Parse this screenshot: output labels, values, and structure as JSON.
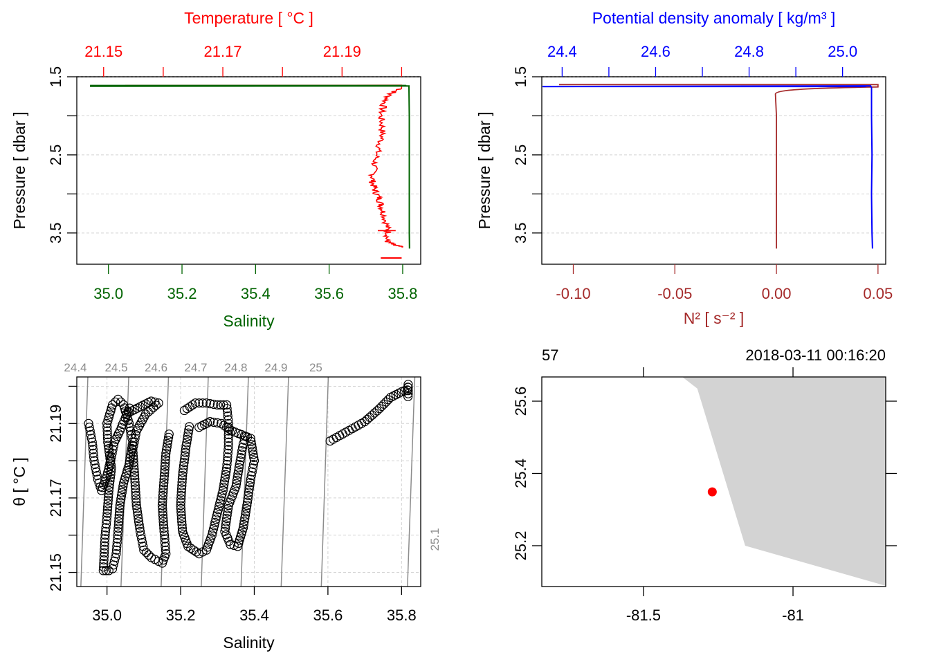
{
  "colors": {
    "temperature": "#ff0000",
    "salinity": "#006400",
    "density": "#0000ff",
    "n2": "#a52a2a",
    "grid": "#d3d3d3",
    "isopycnal": "#8c8c8c",
    "land": "#d3d3d3",
    "station": "#ff0000",
    "axis": "#000000"
  },
  "chart_data": [
    {
      "id": "profile_ts",
      "type": "line",
      "top_axis_title": "Temperature [ °C ]",
      "bottom_axis_title": "Salinity",
      "ylabel": "Pressure [ dbar ]",
      "top_ticks": [
        "21.15",
        "21.17",
        "21.19"
      ],
      "top_minor_ticks": [
        21.15,
        21.16,
        21.17,
        21.18,
        21.19,
        21.2
      ],
      "temp_lim": [
        21.1455,
        21.2032
      ],
      "bottom_ticks": [
        "35.0",
        "35.2",
        "35.4",
        "35.6",
        "35.8"
      ],
      "sal_lim": [
        34.914,
        35.849
      ],
      "y_ticks": [
        "1.5",
        "2.5",
        "3.5"
      ],
      "y_grid": [
        1.5,
        2.0,
        2.5,
        3.0,
        3.5
      ],
      "ylim": [
        3.9,
        1.5
      ],
      "series": [
        {
          "name": "Temperature",
          "points": [
            [
              21.1536,
              1.612
            ],
            [
              21.2,
              1.608
            ],
            [
              21.2,
              1.65
            ],
            [
              21.198,
              1.72
            ],
            [
              21.197,
              1.85
            ],
            [
              21.1965,
              2.0
            ],
            [
              21.1968,
              2.15
            ],
            [
              21.1966,
              2.3
            ],
            [
              21.196,
              2.45
            ],
            [
              21.1955,
              2.6
            ],
            [
              21.1952,
              2.75
            ],
            [
              21.1951,
              2.85
            ],
            [
              21.1955,
              2.95
            ],
            [
              21.1962,
              3.05
            ],
            [
              21.1966,
              3.15
            ],
            [
              21.197,
              3.25
            ],
            [
              21.1975,
              3.4
            ],
            [
              21.1978,
              3.5
            ],
            [
              21.1974,
              3.6
            ],
            [
              21.1985,
              3.65
            ],
            [
              21.2,
              3.68
            ]
          ]
        },
        {
          "name": "Salinity",
          "points": [
            [
              34.95,
              1.622
            ],
            [
              35.817,
              1.618
            ],
            [
              35.817,
              1.64
            ],
            [
              35.818,
              2.0
            ],
            [
              35.818,
              2.5
            ],
            [
              35.818,
              3.0
            ],
            [
              35.818,
              3.5
            ],
            [
              35.8185,
              3.7
            ]
          ]
        }
      ]
    },
    {
      "id": "profile_density",
      "type": "line",
      "top_axis_title": "Potential density anomaly [ kg/m³ ]",
      "bottom_axis_title": "N² [ s⁻² ]",
      "ylabel": "Pressure [ dbar ]",
      "top_ticks": [
        "24.4",
        "24.6",
        "24.8",
        "25.0"
      ],
      "top_minor_ticks": [
        24.4,
        24.5,
        24.6,
        24.7,
        24.8,
        24.9,
        25.0
      ],
      "sigma_lim": [
        24.3565,
        25.0923
      ],
      "bottom_ticks": [
        "-0.10",
        "-0.05",
        "0.00",
        "0.05"
      ],
      "n2_lim": [
        -0.1155,
        0.0538
      ],
      "y_ticks": [
        "1.5",
        "2.5",
        "3.5"
      ],
      "y_grid": [
        1.5,
        2.0,
        2.5,
        3.0,
        3.5
      ],
      "ylim": [
        3.9,
        1.5
      ],
      "series": [
        {
          "name": "Potential density anomaly",
          "points": [
            [
              24.358,
              1.625
            ],
            [
              25.06,
              1.616
            ],
            [
              25.062,
              1.64
            ],
            [
              25.062,
              2.0
            ],
            [
              25.063,
              2.5
            ],
            [
              25.062,
              3.0
            ],
            [
              25.063,
              3.5
            ],
            [
              25.064,
              3.7
            ]
          ]
        },
        {
          "name": "N2",
          "points": [
            [
              -0.107,
              1.6
            ],
            [
              0.05,
              1.6
            ],
            [
              0.05,
              1.63
            ],
            [
              0.02,
              1.65
            ],
            [
              0.0,
              1.72
            ],
            [
              -0.0005,
              1.78
            ],
            [
              0.0,
              2.0
            ],
            [
              0.0,
              3.0
            ],
            [
              0.0,
              3.7
            ]
          ]
        }
      ]
    },
    {
      "id": "ts_diagram",
      "type": "scatter",
      "xlabel": "Salinity",
      "ylabel": "θ [ °C ]",
      "x_ticks": [
        "35.0",
        "35.2",
        "35.4",
        "35.6",
        "35.8"
      ],
      "xlim": [
        34.918,
        35.852
      ],
      "y_ticks": [
        "21.15",
        "21.17",
        "21.19"
      ],
      "ylim": [
        21.1462,
        21.2025
      ],
      "grid": true,
      "isopycnals": [
        "24.4",
        "24.5",
        "24.6",
        "24.7",
        "24.8",
        "24.9",
        "25",
        "25.1"
      ],
      "isopycnal_top_sal": [
        34.948,
        35.059,
        35.167,
        35.275,
        35.384,
        35.493,
        35.601,
        35.836
      ],
      "isopycnal_bottom_sal": [
        34.929,
        35.038,
        35.147,
        35.256,
        35.364,
        35.473,
        35.582,
        35.816
      ],
      "loops": [
        [
          [
            34.99,
            21.1505
          ],
          [
            34.995,
            21.16
          ],
          [
            35.0,
            21.165
          ],
          [
            35.005,
            21.172
          ],
          [
            35.012,
            21.178
          ],
          [
            35.002,
            21.185
          ],
          [
            35.0,
            21.19
          ],
          [
            35.015,
            21.195
          ],
          [
            35.03,
            21.1965
          ],
          [
            35.045,
            21.195
          ],
          [
            35.06,
            21.19
          ],
          [
            35.07,
            21.185
          ],
          [
            35.06,
            21.179
          ],
          [
            35.045,
            21.174
          ],
          [
            35.035,
            21.168
          ],
          [
            35.03,
            21.161
          ],
          [
            35.025,
            21.155
          ],
          [
            35.015,
            21.151
          ],
          [
            35.005,
            21.1505
          ],
          [
            34.99,
            21.1505
          ]
        ],
        [
          [
            34.95,
            21.19
          ],
          [
            34.96,
            21.185
          ],
          [
            34.965,
            21.18
          ],
          [
            34.975,
            21.175
          ],
          [
            34.985,
            21.172
          ],
          [
            35.0,
            21.176
          ],
          [
            35.012,
            21.181
          ],
          [
            35.02,
            21.185
          ],
          [
            35.035,
            21.188
          ],
          [
            35.05,
            21.1915
          ],
          [
            35.065,
            21.195
          ]
        ],
        [
          [
            35.06,
            21.193
          ],
          [
            35.09,
            21.1945
          ],
          [
            35.12,
            21.196
          ],
          [
            35.14,
            21.1955
          ],
          [
            35.105,
            21.1925
          ],
          [
            35.08,
            21.188
          ],
          [
            35.07,
            21.183
          ],
          [
            35.075,
            21.176
          ],
          [
            35.08,
            21.168
          ],
          [
            35.09,
            21.161
          ],
          [
            35.1,
            21.156
          ],
          [
            35.12,
            21.154
          ],
          [
            35.14,
            21.153
          ],
          [
            35.15,
            21.1525
          ],
          [
            35.16,
            21.155
          ],
          [
            35.155,
            21.161
          ],
          [
            35.15,
            21.168
          ],
          [
            35.155,
            21.175
          ],
          [
            35.16,
            21.182
          ],
          [
            35.17,
            21.188
          ]
        ],
        [
          [
            35.21,
            21.1935
          ],
          [
            35.24,
            21.1955
          ],
          [
            35.27,
            21.1955
          ],
          [
            35.3,
            21.195
          ],
          [
            35.325,
            21.195
          ],
          [
            35.33,
            21.19
          ],
          [
            35.33,
            21.184
          ],
          [
            35.325,
            21.178
          ],
          [
            35.315,
            21.172
          ],
          [
            35.3,
            21.166
          ],
          [
            35.285,
            21.16
          ],
          [
            35.27,
            21.156
          ],
          [
            35.25,
            21.155
          ],
          [
            35.22,
            21.157
          ],
          [
            35.205,
            21.161
          ],
          [
            35.2,
            21.168
          ],
          [
            35.205,
            21.176
          ],
          [
            35.215,
            21.184
          ],
          [
            35.225,
            21.19
          ]
        ],
        [
          [
            35.25,
            21.189
          ],
          [
            35.28,
            21.1905
          ],
          [
            35.31,
            21.19
          ],
          [
            35.34,
            21.188
          ],
          [
            35.365,
            21.187
          ],
          [
            35.39,
            21.186
          ],
          [
            35.4,
            21.18
          ],
          [
            35.39,
            21.175
          ],
          [
            35.38,
            21.168
          ],
          [
            35.37,
            21.162
          ],
          [
            35.355,
            21.157
          ],
          [
            35.335,
            21.1575
          ],
          [
            35.32,
            21.161
          ],
          [
            35.33,
            21.168
          ],
          [
            35.35,
            21.173
          ],
          [
            35.36,
            21.179
          ],
          [
            35.37,
            21.1845
          ],
          [
            35.38,
            21.1875
          ]
        ],
        [
          [
            35.606,
            21.1853
          ],
          [
            35.7,
            21.1905
          ],
          [
            35.74,
            21.194
          ],
          [
            35.77,
            21.197
          ],
          [
            35.8,
            21.1985
          ],
          [
            35.816,
            21.199
          ],
          [
            35.818,
            21.2005
          ],
          [
            35.818,
            21.198
          ],
          [
            35.817,
            21.1965
          ]
        ]
      ]
    },
    {
      "id": "station_map",
      "type": "map",
      "top_left_label": "57",
      "top_right_label": "2018-03-11 00:16:20",
      "x_ticks": [
        "-81.5",
        "-81"
      ],
      "x_tick_values": [
        -81.5,
        -81.0
      ],
      "xlim": [
        -81.84,
        -80.69
      ],
      "y_ticks": [
        "25.2",
        "25.4",
        "25.6"
      ],
      "y_tick_values": [
        25.2,
        25.4,
        25.6
      ],
      "ylim": [
        25.087,
        25.667
      ],
      "station": {
        "lon": -81.27,
        "lat": 25.349
      },
      "land_polygon": [
        [
          -81.37,
          25.667
        ],
        [
          -81.32,
          25.635
        ],
        [
          -81.16,
          25.2
        ],
        [
          -80.69,
          25.089
        ],
        [
          -80.69,
          25.667
        ]
      ]
    }
  ]
}
